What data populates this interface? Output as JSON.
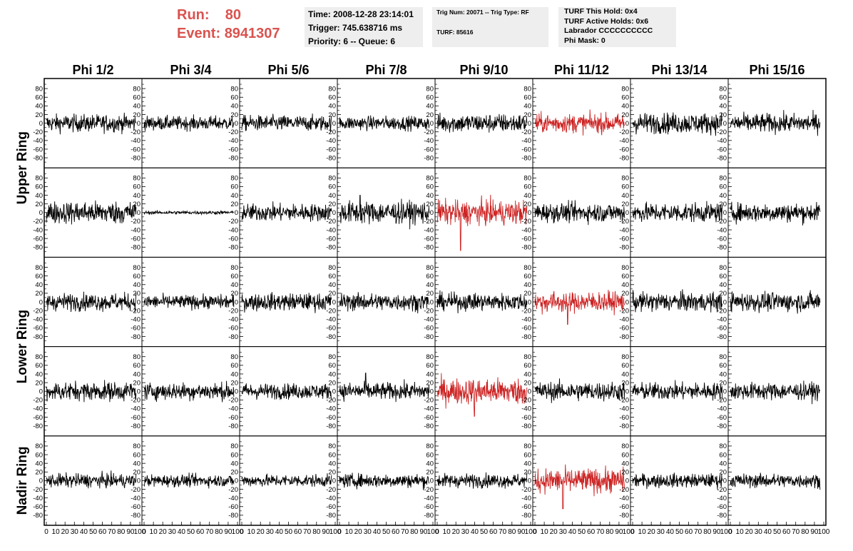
{
  "header": {
    "run_label": "Run:",
    "run_value": "80",
    "event_label": "Event:",
    "event_value": "8941307",
    "time_line": "Time: 2008-12-28 23:14:01",
    "trigger_line": "Trigger: 745.638716 ms",
    "priority_line": "Priority: 6 -- Queue: 6",
    "trig_line": "Trig Num: 20071 -- Trig Type: RF",
    "turf_line": "TURF: 85616",
    "turf_hold_line": "TURF This Hold: 0x4",
    "turf_active_line": "TURF Active Holds: 0x6",
    "labrador_line": "Labrador CCCCCCCCCC",
    "phimask_line": "Phi Mask: 0"
  },
  "colors": {
    "accent": "#d9534f",
    "trace": "#000000",
    "trace_highlight": "#cc2222",
    "info_bg": "#eeeeee"
  },
  "chart_data": {
    "type": "line",
    "columns": [
      "Phi 1/2",
      "Phi 3/4",
      "Phi 5/6",
      "Phi 7/8",
      "Phi 9/10",
      "Phi 11/12",
      "Phi 13/14",
      "Phi 15/16"
    ],
    "ring_labels": [
      "Upper Ring",
      "Lower Ring",
      "Nadir Ring"
    ],
    "row_ring": [
      0,
      0,
      1,
      1,
      2
    ],
    "ylim": [
      -100,
      100
    ],
    "yticks": [
      -80,
      -60,
      -40,
      -20,
      0,
      20,
      40,
      60,
      80
    ],
    "xlim": [
      0,
      100
    ],
    "xticks": [
      0,
      10,
      20,
      30,
      40,
      50,
      60,
      70,
      80,
      90,
      100
    ],
    "xtick_labels": [
      "0",
      "10",
      "20",
      "30",
      "40",
      "50",
      "60",
      "70",
      "80",
      "90",
      "100"
    ],
    "highlighted_panels": [
      [
        0,
        5
      ],
      [
        1,
        4
      ],
      [
        2,
        5
      ],
      [
        3,
        4
      ],
      [
        4,
        5
      ]
    ],
    "samples_per_trace": 260,
    "amplitude_rms": [
      [
        10,
        8,
        9,
        8,
        11,
        11,
        12,
        11
      ],
      [
        13,
        2,
        10,
        13,
        14,
        11,
        11,
        11
      ],
      [
        10,
        8,
        10,
        10,
        10,
        12,
        11,
        11
      ],
      [
        11,
        10,
        9,
        10,
        15,
        11,
        10,
        10
      ],
      [
        8,
        7,
        7,
        8,
        8,
        14,
        8,
        8
      ]
    ],
    "spikes": [
      {
        "row": 1,
        "col": 4,
        "x": 25,
        "y": -88
      },
      {
        "row": 1,
        "col": 3,
        "x": 22,
        "y": 40
      },
      {
        "row": 3,
        "col": 3,
        "x": 28,
        "y": 42
      },
      {
        "row": 4,
        "col": 5,
        "x": 30,
        "y": -65
      },
      {
        "row": 2,
        "col": 5,
        "x": 35,
        "y": -52
      },
      {
        "row": 3,
        "col": 4,
        "x": 40,
        "y": -58
      }
    ]
  }
}
